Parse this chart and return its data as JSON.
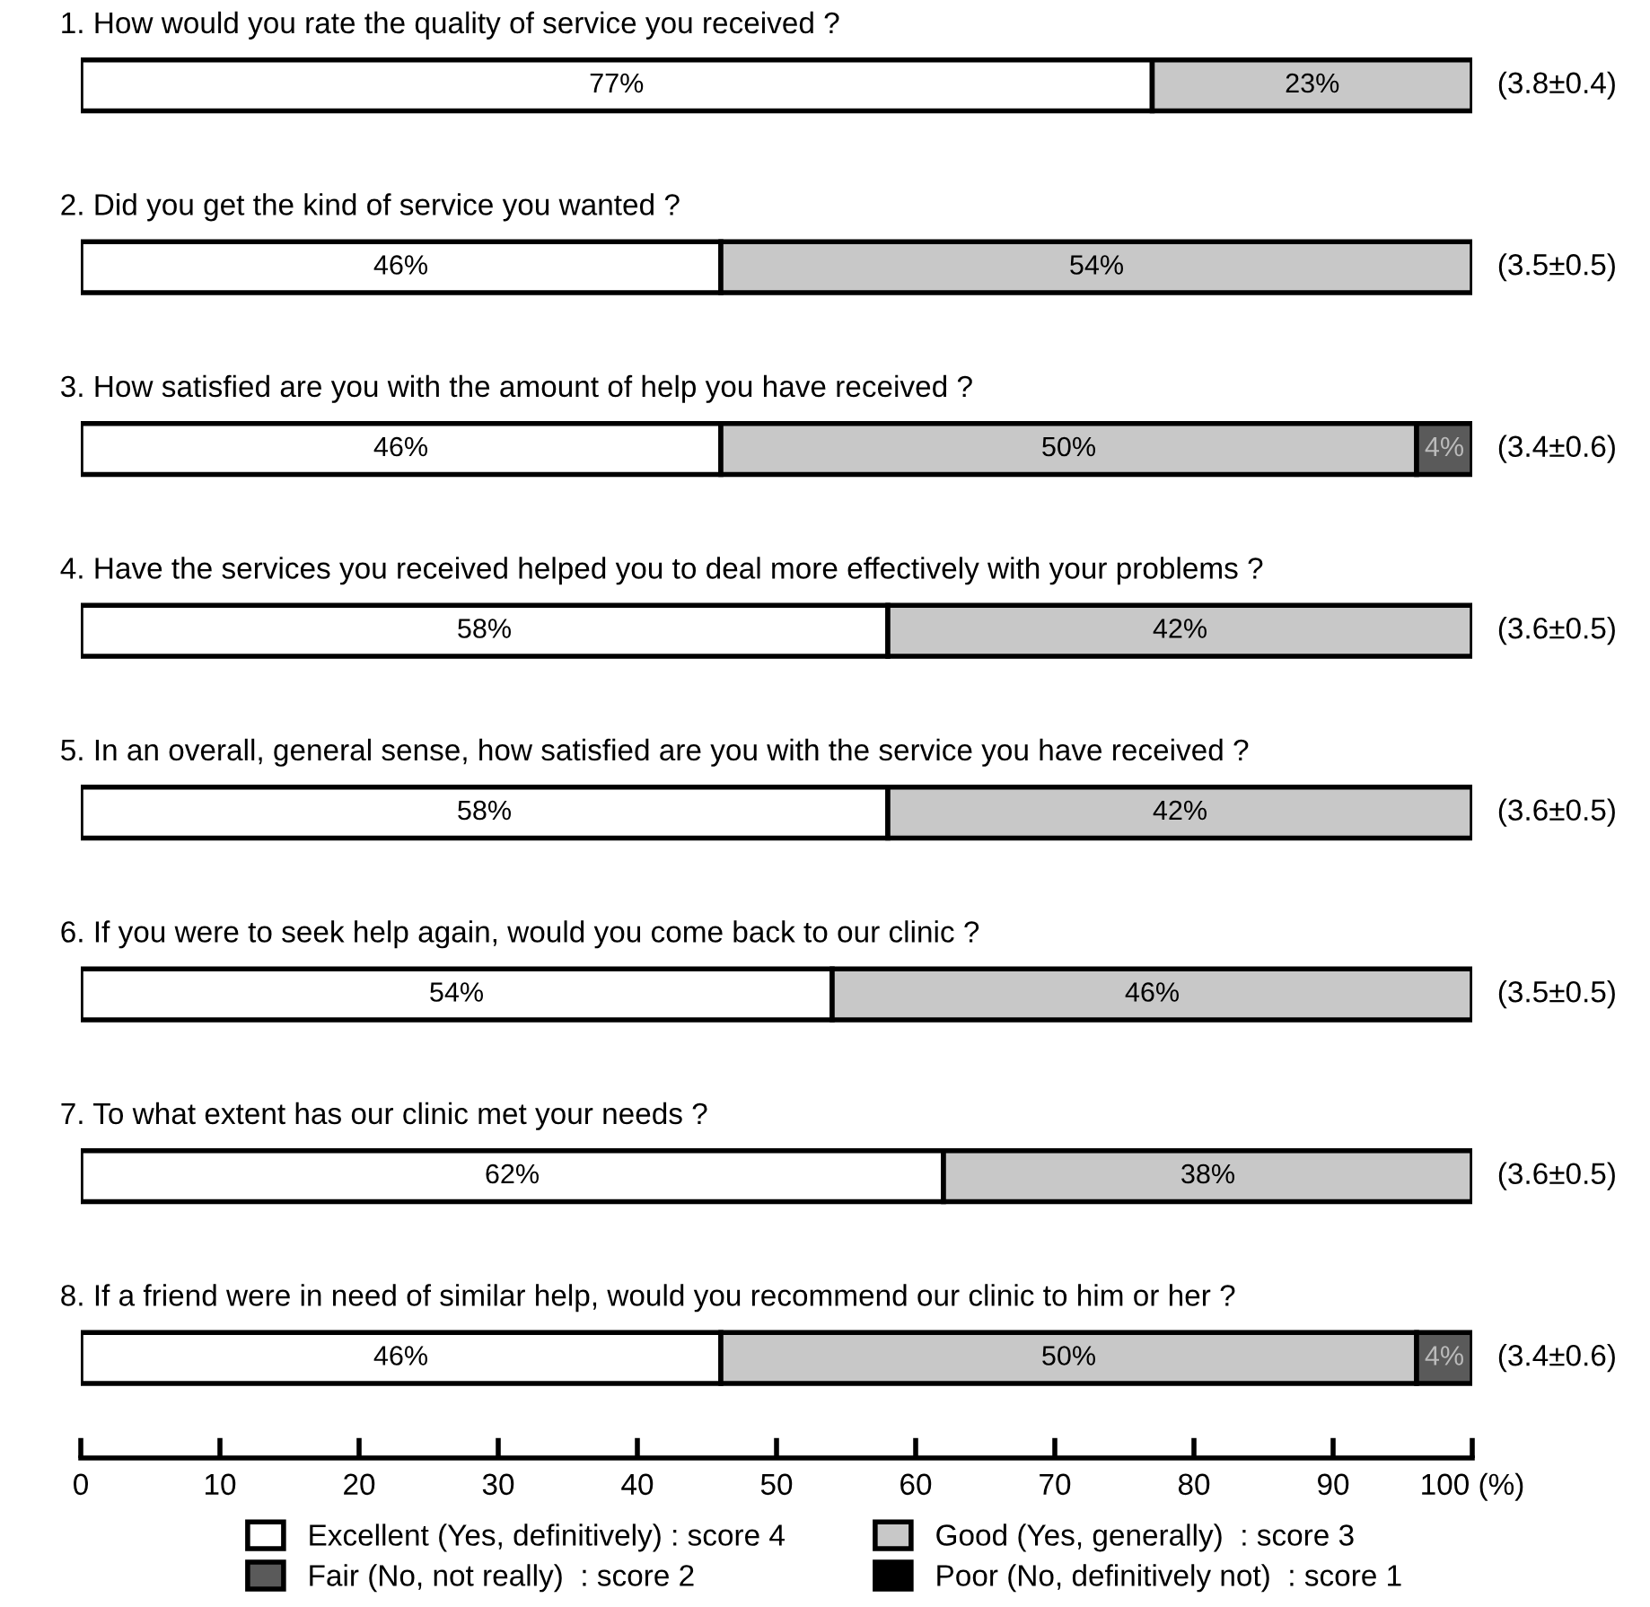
{
  "chart_data": {
    "type": "bar",
    "orientation": "horizontal",
    "stacked": true,
    "categories": [
      "1. How would you rate the quality of service you received ?",
      "2. Did you get the kind of service you wanted ?",
      "3. How satisfied are you with the amount of help you have received ?",
      "4. Have the services you received helped you to deal more effectively with your problems ?",
      "5. In an overall, general sense, how satisfied are you with the service you have received ?",
      "6. If you were to seek help again, would you come back to our clinic ?",
      "7. To what extent has our clinic met your needs ?",
      "8. If a friend were in need of similar help, would you recommend our clinic to him or her ?"
    ],
    "series": [
      {
        "name": "Excellent (Yes, definitively) : score 4",
        "color": "#ffffff",
        "values": [
          77,
          46,
          46,
          58,
          58,
          54,
          62,
          46
        ],
        "value_labels": [
          "77%",
          "46%",
          "46%",
          "58%",
          "58%",
          "54%",
          "62%",
          "46%"
        ]
      },
      {
        "name": "Good (Yes, generally)  : score 3",
        "color": "#c8c8c8",
        "values": [
          23,
          54,
          50,
          42,
          42,
          46,
          38,
          50
        ],
        "value_labels": [
          "23%",
          "54%",
          "50%",
          "42%",
          "42%",
          "46%",
          "38%",
          "50%"
        ]
      },
      {
        "name": "Fair (No, not really)  : score 2",
        "color": "#5a5a5a",
        "values": [
          null,
          null,
          4,
          null,
          null,
          null,
          null,
          4
        ],
        "value_labels": [
          null,
          null,
          "4%",
          null,
          null,
          null,
          null,
          "4%"
        ]
      },
      {
        "name": "Poor (No, definitively not)  : score 1",
        "color": "#000000",
        "values": [
          null,
          null,
          null,
          null,
          null,
          null,
          null,
          null
        ]
      }
    ],
    "annotations": [
      "(3.8±0.4)",
      "(3.5±0.5)",
      "(3.4±0.6)",
      "(3.6±0.5)",
      "(3.6±0.5)",
      "(3.5±0.5)",
      "(3.6±0.5)",
      "(3.4±0.6)"
    ],
    "xlim": [
      0,
      100
    ],
    "xticks": [
      0,
      10,
      20,
      30,
      40,
      50,
      60,
      70,
      80,
      90,
      {
        "value": 100,
        "label": "100 (%)"
      }
    ],
    "grid": false,
    "legend": "bottom"
  }
}
